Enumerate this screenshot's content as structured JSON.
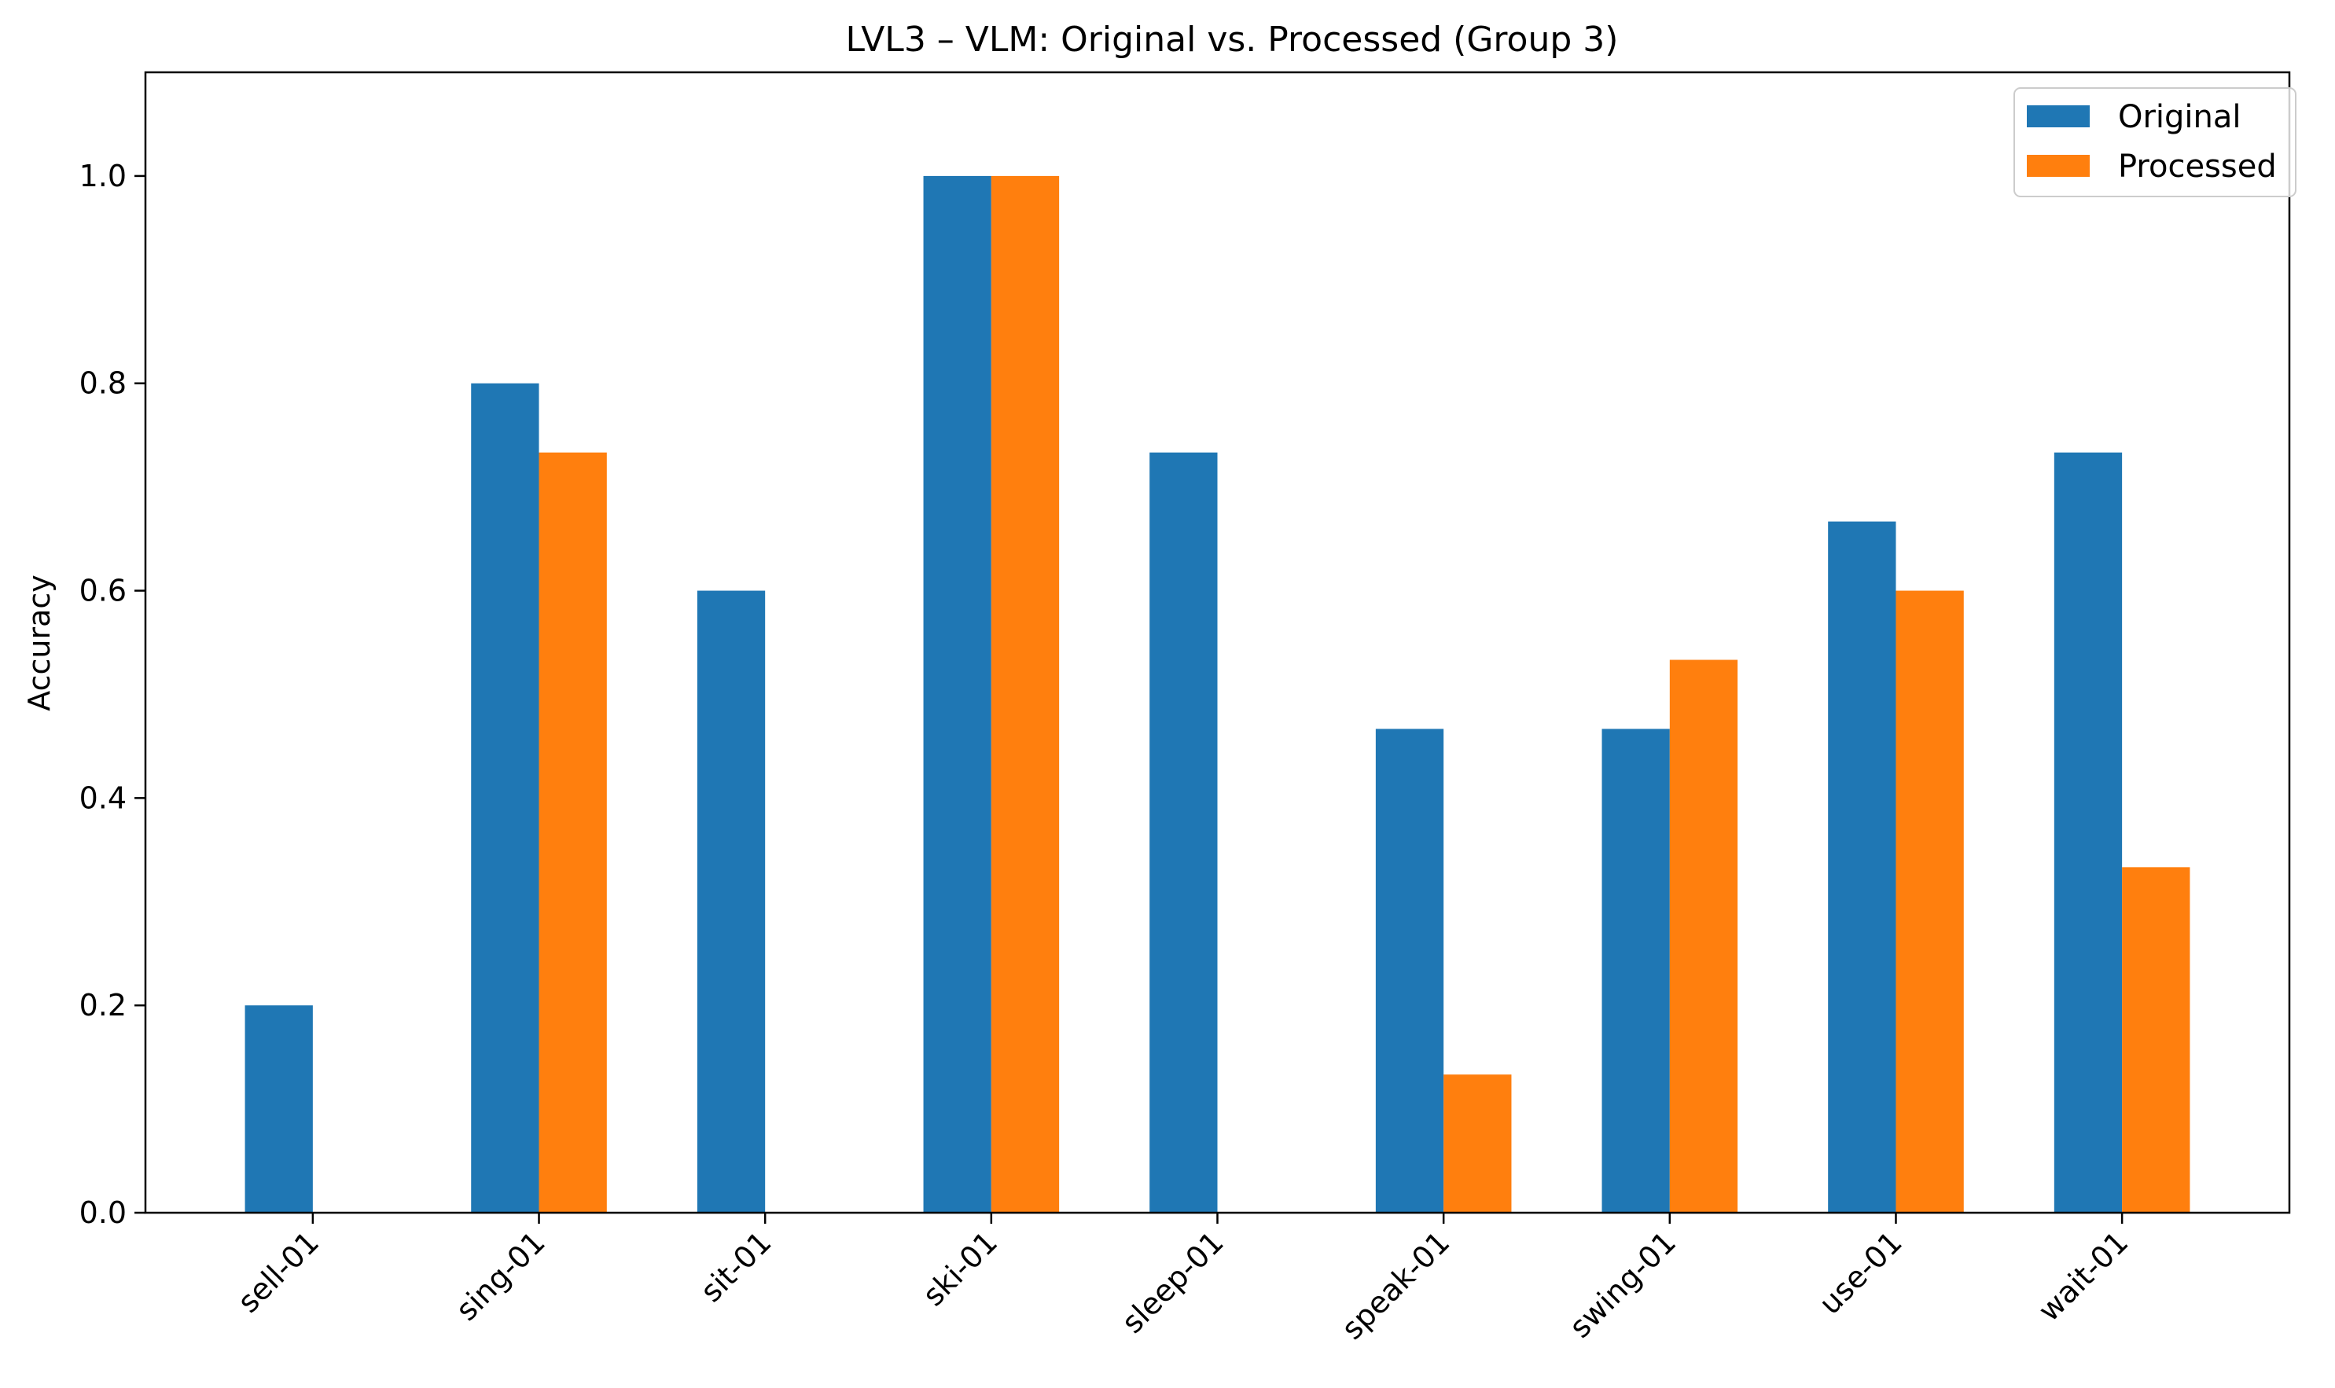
{
  "chart_data": {
    "type": "bar",
    "title": "LVL3 – VLM: Original vs. Processed (Group 3)",
    "xlabel": "",
    "ylabel": "Accuracy",
    "ylim": [
      0,
      1.1
    ],
    "yticks": [
      "0.0",
      "0.2",
      "0.4",
      "0.6",
      "0.8",
      "1.0"
    ],
    "grid": false,
    "legend_position": "top-right",
    "categories": [
      "sell-01",
      "sing-01",
      "sit-01",
      "ski-01",
      "sleep-01",
      "speak-01",
      "swing-01",
      "use-01",
      "wait-01"
    ],
    "series": [
      {
        "name": "Original",
        "color": "#1f77b4",
        "values": [
          0.2,
          0.8,
          0.6,
          1.0,
          0.7333,
          0.4667,
          0.4667,
          0.6667,
          0.7333
        ]
      },
      {
        "name": "Processed",
        "color": "#ff7f0e",
        "values": [
          0.0,
          0.7333,
          0.0,
          1.0,
          0.0,
          0.1333,
          0.5333,
          0.6,
          0.3333
        ]
      }
    ]
  }
}
